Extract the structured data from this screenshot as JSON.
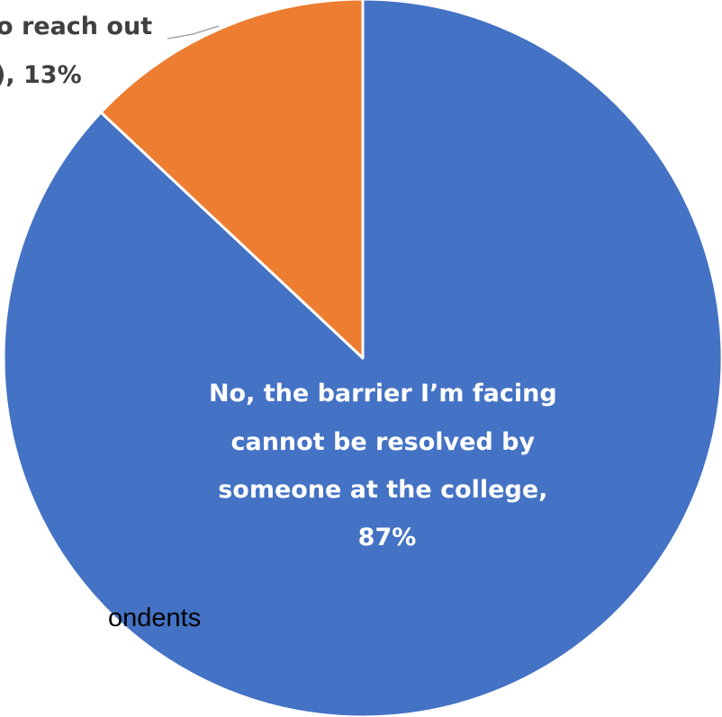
{
  "chart_data": {
    "type": "pie",
    "series": [
      {
        "values": [
          87,
          13
        ],
        "labels": [
          "No, the barrier I’m facing cannot be resolved by someone at the college",
          "Yes, I plan to reach out for help"
        ],
        "label_lines": [
          [
            "No, the barrier I’m facing",
            "cannot be resolved by",
            "someone at the college,",
            "87%"
          ],
          [
            "o reach out",
            "), 13%"
          ]
        ],
        "colors": [
          "#4472C4",
          "#ED7D31"
        ]
      }
    ],
    "title": "",
    "legend": "none",
    "footnote": "ondents"
  }
}
